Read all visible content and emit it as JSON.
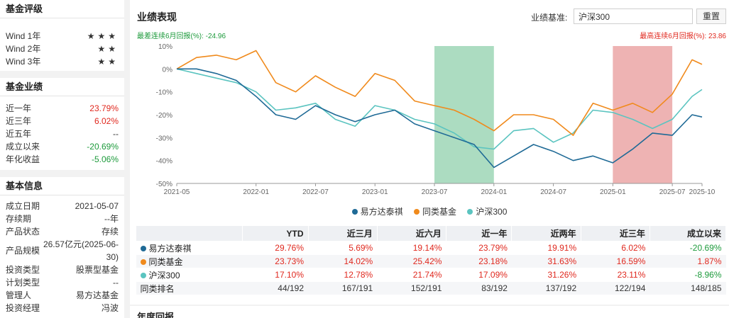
{
  "rating": {
    "title": "基金评级",
    "items": [
      {
        "label": "Wind 1年",
        "stars": "★★★"
      },
      {
        "label": "Wind 2年",
        "stars": "★★"
      },
      {
        "label": "Wind 3年",
        "stars": "★★"
      }
    ]
  },
  "performance_summary": {
    "title": "基金业绩",
    "items": [
      {
        "label": "近一年",
        "value": "23.79%",
        "tone": "red"
      },
      {
        "label": "近三年",
        "value": "6.02%",
        "tone": "red"
      },
      {
        "label": "近五年",
        "value": "--",
        "tone": ""
      },
      {
        "label": "成立以来",
        "value": "-20.69%",
        "tone": "green"
      },
      {
        "label": "年化收益",
        "value": "-5.06%",
        "tone": "green"
      }
    ]
  },
  "basic_info": {
    "title": "基本信息",
    "items": [
      {
        "label": "成立日期",
        "value": "2021-05-07"
      },
      {
        "label": "存续期",
        "value": "--年"
      },
      {
        "label": "产品状态",
        "value": "存续"
      },
      {
        "label": "产品规模",
        "value": "26.57亿元(2025-06-",
        "value2": "30)"
      },
      {
        "label": "投资类型",
        "value": "股票型基金"
      },
      {
        "label": "计划类型",
        "value": "--"
      },
      {
        "label": "管理人",
        "value": "易方达基金"
      },
      {
        "label": "投资经理",
        "value": "冯波"
      }
    ]
  },
  "main": {
    "title": "业绩表现",
    "benchmark_label": "业绩基准:",
    "benchmark_value": "沪深300",
    "reset_label": "重置",
    "max_drawdown_text": "最差连续6月回报(%): -24.96",
    "max_gain_text": "最高连续6月回报(%): 23.86"
  },
  "colors": {
    "fund": "#1f6a96",
    "peer": "#f08a1c",
    "index": "#5bc4c0",
    "green_band": "#7fc9a0",
    "red_band": "#e58b8b"
  },
  "chart_data": {
    "type": "line",
    "x_tick_labels": [
      "2021-05",
      "2022-01",
      "2022-07",
      "2023-01",
      "2023-07",
      "2024-01",
      "2024-07",
      "2025-01",
      "2025-07",
      "2025-10"
    ],
    "y_tick_labels": [
      "10%",
      "0%",
      "-10%",
      "-20%",
      "-30%",
      "-40%",
      "-50%"
    ],
    "ylim": [
      -50,
      10
    ],
    "xlim": [
      "2021-05",
      "2025-10"
    ],
    "grid": false,
    "legend_position": "bottom-center",
    "shaded_ranges": [
      {
        "from": "2023-07",
        "to": "2024-01",
        "color": "green"
      },
      {
        "from": "2025-01",
        "to": "2025-07",
        "color": "red"
      }
    ],
    "series": [
      {
        "name": "易方达泰祺",
        "color_key": "fund",
        "x": [
          "2021-05",
          "2021-07",
          "2021-09",
          "2021-11",
          "2022-01",
          "2022-03",
          "2022-05",
          "2022-07",
          "2022-09",
          "2022-11",
          "2023-01",
          "2023-03",
          "2023-05",
          "2023-07",
          "2023-09",
          "2023-11",
          "2024-01",
          "2024-03",
          "2024-05",
          "2024-07",
          "2024-09",
          "2024-11",
          "2025-01",
          "2025-03",
          "2025-05",
          "2025-07",
          "2025-09",
          "2025-10"
        ],
        "values": [
          0,
          0,
          -2,
          -5,
          -12,
          -20,
          -22,
          -16,
          -20,
          -23,
          -20,
          -18,
          -24,
          -27,
          -30,
          -33,
          -43,
          -38,
          -33,
          -36,
          -40,
          -38,
          -41,
          -35,
          -28,
          -29,
          -20,
          -21
        ]
      },
      {
        "name": "同类基金",
        "color_key": "peer",
        "x": [
          "2021-05",
          "2021-07",
          "2021-09",
          "2021-11",
          "2022-01",
          "2022-03",
          "2022-05",
          "2022-07",
          "2022-09",
          "2022-11",
          "2023-01",
          "2023-03",
          "2023-05",
          "2023-07",
          "2023-09",
          "2023-11",
          "2024-01",
          "2024-03",
          "2024-05",
          "2024-07",
          "2024-09",
          "2024-11",
          "2025-01",
          "2025-03",
          "2025-05",
          "2025-07",
          "2025-09",
          "2025-10"
        ],
        "values": [
          0,
          5,
          6,
          4,
          8,
          -6,
          -10,
          -3,
          -8,
          -12,
          -2,
          -5,
          -14,
          -16,
          -18,
          -22,
          -27,
          -20,
          -20,
          -22,
          -29,
          -15,
          -18,
          -15,
          -19,
          -11,
          4,
          2
        ]
      },
      {
        "name": "沪深300",
        "color_key": "index",
        "x": [
          "2021-05",
          "2021-07",
          "2021-09",
          "2021-11",
          "2022-01",
          "2022-03",
          "2022-05",
          "2022-07",
          "2022-09",
          "2022-11",
          "2023-01",
          "2023-03",
          "2023-05",
          "2023-07",
          "2023-09",
          "2023-11",
          "2024-01",
          "2024-03",
          "2024-05",
          "2024-07",
          "2024-09",
          "2024-11",
          "2025-01",
          "2025-03",
          "2025-05",
          "2025-07",
          "2025-09",
          "2025-10"
        ],
        "values": [
          0,
          -2,
          -4,
          -6,
          -10,
          -18,
          -17,
          -15,
          -22,
          -25,
          -16,
          -18,
          -22,
          -24,
          -28,
          -34,
          -35,
          -27,
          -26,
          -32,
          -28,
          -18,
          -19,
          -22,
          -26,
          -22,
          -12,
          -9
        ]
      }
    ]
  },
  "legend": [
    {
      "name": "易方达泰祺",
      "color_key": "fund"
    },
    {
      "name": "同类基金",
      "color_key": "peer"
    },
    {
      "name": "沪深300",
      "color_key": "index"
    }
  ],
  "table": {
    "headers": [
      "",
      "YTD",
      "近三月",
      "近六月",
      "近一年",
      "近两年",
      "近三年",
      "成立以来"
    ],
    "rows": [
      {
        "name": "易方达泰祺",
        "color_key": "fund",
        "cells": [
          "29.76%",
          "5.69%",
          "19.14%",
          "23.79%",
          "19.91%",
          "6.02%",
          "-20.69%"
        ],
        "tones": [
          "red",
          "red",
          "red",
          "red",
          "red",
          "red",
          "green"
        ]
      },
      {
        "name": "同类基金",
        "color_key": "peer",
        "cells": [
          "23.73%",
          "14.02%",
          "25.42%",
          "23.18%",
          "31.63%",
          "16.59%",
          "1.87%"
        ],
        "tones": [
          "red",
          "red",
          "red",
          "red",
          "red",
          "red",
          "red"
        ]
      },
      {
        "name": "沪深300",
        "color_key": "index",
        "cells": [
          "17.10%",
          "12.78%",
          "21.74%",
          "17.09%",
          "31.26%",
          "23.11%",
          "-8.96%"
        ],
        "tones": [
          "red",
          "red",
          "red",
          "red",
          "red",
          "red",
          "green"
        ]
      },
      {
        "name": "同类排名",
        "color_key": "",
        "cells": [
          "44/192",
          "167/191",
          "152/191",
          "83/192",
          "137/192",
          "122/194",
          "148/185"
        ],
        "tones": [
          "",
          "",
          "",
          "",
          "",
          "",
          ""
        ]
      }
    ]
  },
  "next_section": {
    "title": "年度回报"
  }
}
